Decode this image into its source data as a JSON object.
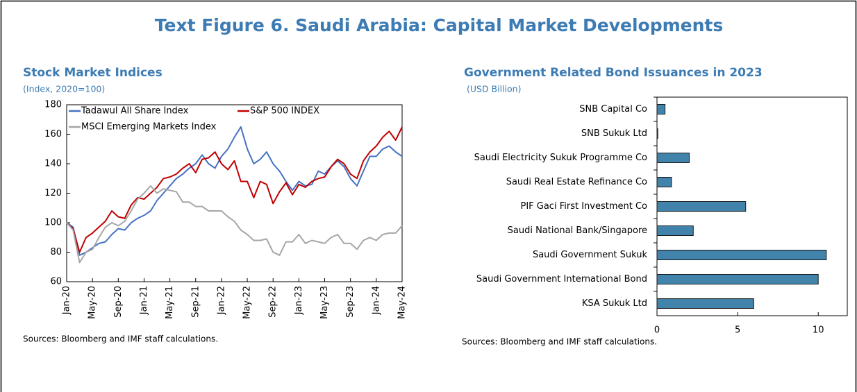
{
  "title": "Text Figure 6.  Saudi Arabia: Capital Market Developments",
  "chart_data": [
    {
      "type": "line",
      "title": "Stock Market Indices",
      "subtitle": "(Index, 2020=100)",
      "source": "Sources: Bloomberg and IMF staff calculations.",
      "x": [
        "Jan-20",
        "Feb-20",
        "Mar-20",
        "Apr-20",
        "May-20",
        "Jun-20",
        "Jul-20",
        "Aug-20",
        "Sep-20",
        "Oct-20",
        "Nov-20",
        "Dec-20",
        "Jan-21",
        "Feb-21",
        "Mar-21",
        "Apr-21",
        "May-21",
        "Jun-21",
        "Jul-21",
        "Aug-21",
        "Sep-21",
        "Oct-21",
        "Nov-21",
        "Dec-21",
        "Jan-22",
        "Feb-22",
        "Mar-22",
        "Apr-22",
        "May-22",
        "Jun-22",
        "Jul-22",
        "Aug-22",
        "Sep-22",
        "Oct-22",
        "Nov-22",
        "Dec-22",
        "Jan-23",
        "Feb-23",
        "Mar-23",
        "Apr-23",
        "May-23",
        "Jun-23",
        "Jul-23",
        "Aug-23",
        "Sep-23",
        "Oct-23",
        "Nov-23",
        "Dec-23",
        "Jan-24",
        "Feb-24",
        "Mar-24",
        "Apr-24",
        "May-24"
      ],
      "xticks": [
        "Jan-20",
        "May-20",
        "Sep-20",
        "Jan-21",
        "May-21",
        "Sep-21",
        "Jan-22",
        "May-22",
        "Sep-22",
        "Jan-23",
        "May-23",
        "Sep-23",
        "Jan-24",
        "May-24"
      ],
      "ylim": [
        60,
        180
      ],
      "yticks": [
        60,
        80,
        100,
        120,
        140,
        160,
        180
      ],
      "legend": "upper left",
      "series": [
        {
          "name": "Tadawul All Share Index",
          "color": "#4472c4",
          "values": [
            100,
            97,
            78,
            80,
            83,
            86,
            87,
            92,
            96,
            95,
            100,
            103,
            105,
            108,
            115,
            120,
            125,
            130,
            133,
            137,
            140,
            146,
            140,
            137,
            145,
            150,
            158,
            165,
            150,
            140,
            143,
            148,
            140,
            135,
            128,
            122,
            128,
            125,
            126,
            135,
            133,
            138,
            142,
            138,
            130,
            125,
            135,
            145,
            145,
            150,
            152,
            148,
            145
          ]
        },
        {
          "name": "S&P 500 INDEX",
          "color": "#c00000",
          "values": [
            100,
            96,
            80,
            90,
            93,
            97,
            101,
            108,
            104,
            103,
            112,
            117,
            116,
            120,
            124,
            130,
            131,
            133,
            137,
            140,
            134,
            143,
            144,
            148,
            140,
            136,
            142,
            128,
            128,
            117,
            128,
            126,
            113,
            121,
            127,
            119,
            126,
            124,
            128,
            130,
            131,
            138,
            143,
            140,
            133,
            130,
            142,
            148,
            152,
            158,
            162,
            156,
            165
          ]
        },
        {
          "name": "MSCI Emerging Markets Index",
          "color": "#a6a6a6",
          "values": [
            100,
            95,
            73,
            80,
            82,
            90,
            97,
            100,
            98,
            101,
            108,
            116,
            120,
            125,
            120,
            123,
            122,
            121,
            114,
            114,
            111,
            111,
            108,
            108,
            108,
            104,
            101,
            95,
            92,
            88,
            88,
            89,
            80,
            78,
            87,
            87,
            92,
            86,
            88,
            87,
            86,
            90,
            92,
            86,
            86,
            82,
            88,
            90,
            88,
            92,
            93,
            93,
            98
          ]
        }
      ]
    },
    {
      "type": "bar",
      "orientation": "horizontal",
      "title": "Government Related Bond Issuances in 2023",
      "subtitle": "(USD Billion)",
      "source": "Sources: Bloomberg and IMF staff calculations.",
      "categories": [
        "SNB Capital Co",
        "SNB Sukuk Ltd",
        "Saudi Electricity Sukuk Programme Co",
        "Saudi Real Estate Refinance Co",
        "PIF Gaci First Investment Co",
        "Saudi National Bank/Singapore",
        "Saudi Government Sukuk",
        "Saudi Government International Bond",
        "KSA Sukuk Ltd"
      ],
      "values": [
        0.5,
        0.05,
        2,
        0.9,
        5.5,
        2.25,
        10.5,
        10,
        6
      ],
      "color": "#4283ab",
      "xlim": [
        0,
        11.8
      ],
      "xticks": [
        0,
        5,
        10
      ]
    }
  ]
}
